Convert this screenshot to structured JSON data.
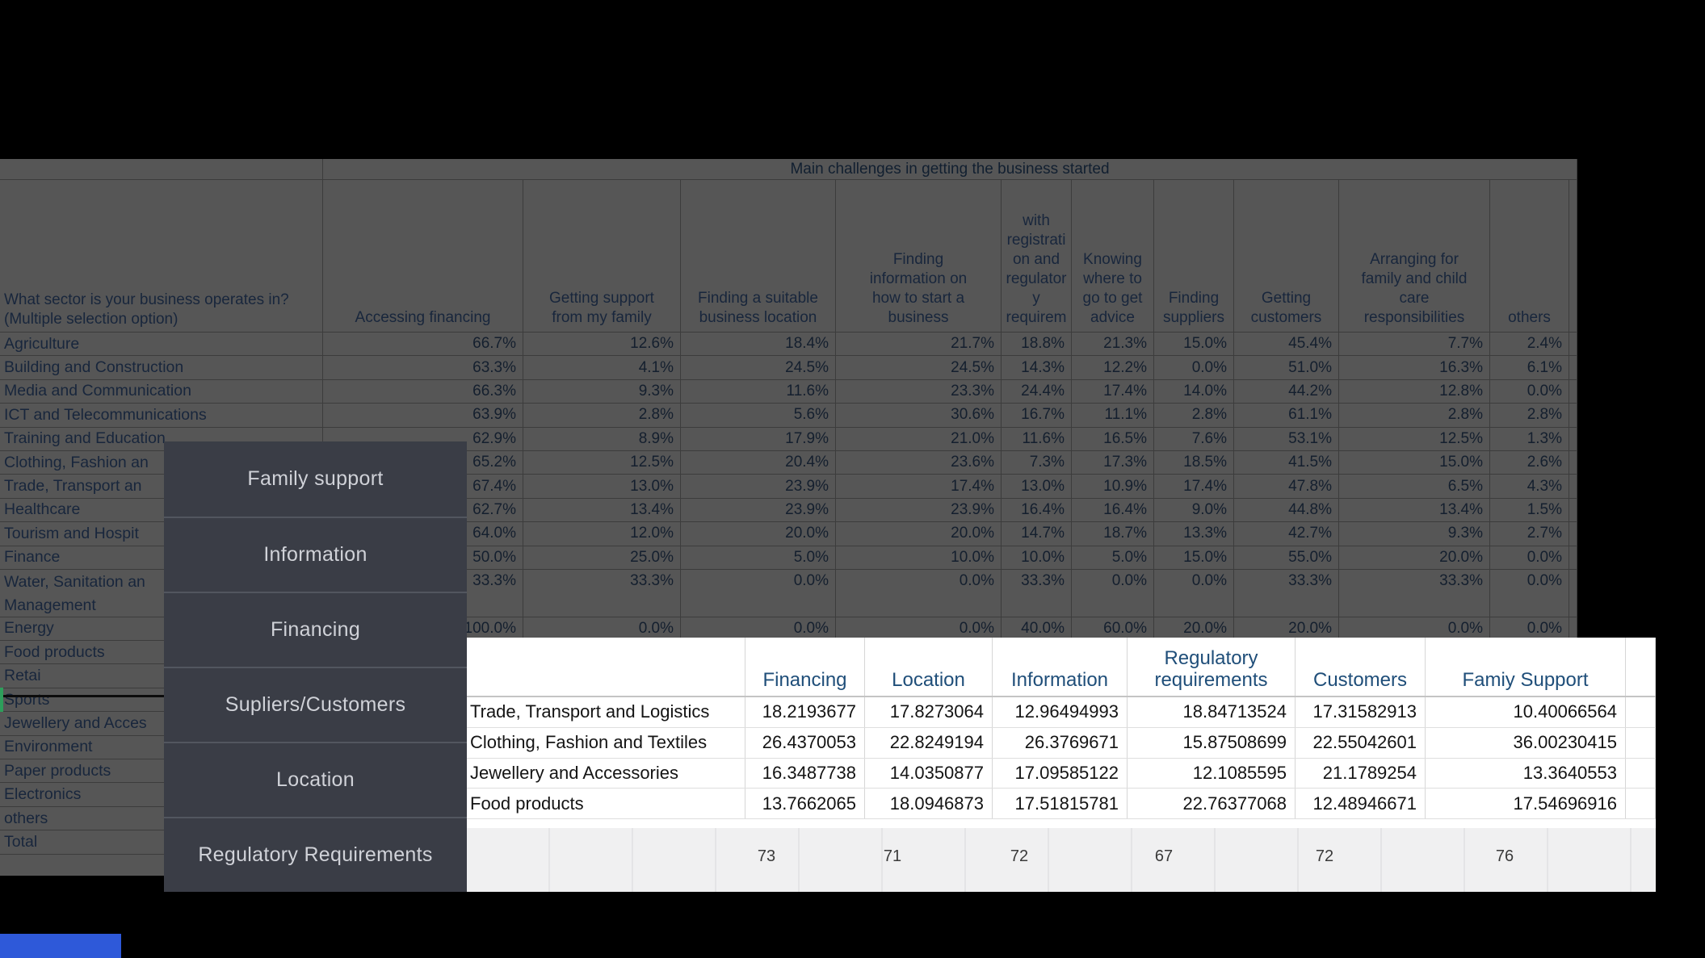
{
  "colors": {
    "page_background": "#000000",
    "dimmed_sheet_background": "#565656",
    "menu_background": "#3a3d46",
    "menu_text": "#d0d2d8",
    "white_table_header_text": "#1f4e79",
    "totals_strip_background": "#f0f0f1",
    "accent_blue_box": "#2e59d9",
    "active_cell_green": "#2e9e5b"
  },
  "spreadsheet": {
    "title": "Main challenges in getting the business started",
    "question_line1": "What sector is your business operates in?",
    "question_line2": "(Multiple selection option)",
    "columns": [
      {
        "lines": [
          "Accessing financing"
        ]
      },
      {
        "lines": [
          "Getting support",
          "from my family"
        ]
      },
      {
        "lines": [
          "Finding a suitable",
          "business location"
        ]
      },
      {
        "lines": [
          "Finding",
          "information on",
          "how to start a",
          "business"
        ]
      },
      {
        "lines": [
          "with",
          "registrati",
          "on and",
          "regulator",
          "y",
          "requirem"
        ]
      },
      {
        "lines": [
          "Knowing",
          "where to",
          "go to get",
          "advice"
        ]
      },
      {
        "lines": [
          "Finding",
          "suppliers"
        ]
      },
      {
        "lines": [
          "Getting",
          "customers"
        ]
      },
      {
        "lines": [
          "Arranging for",
          "family and child",
          "care",
          "responsibilities"
        ]
      },
      {
        "lines": [
          "others"
        ]
      }
    ],
    "rows": [
      {
        "label": "Agriculture",
        "values": [
          "66.7%",
          "12.6%",
          "18.4%",
          "21.7%",
          "18.8%",
          "21.3%",
          "15.0%",
          "45.4%",
          "7.7%",
          "2.4%"
        ]
      },
      {
        "label": "Building and Construction",
        "values": [
          "63.3%",
          "4.1%",
          "24.5%",
          "24.5%",
          "14.3%",
          "12.2%",
          "0.0%",
          "51.0%",
          "16.3%",
          "6.1%"
        ]
      },
      {
        "label": "Media and Communication",
        "values": [
          "66.3%",
          "9.3%",
          "11.6%",
          "23.3%",
          "24.4%",
          "17.4%",
          "14.0%",
          "44.2%",
          "12.8%",
          "0.0%"
        ]
      },
      {
        "label": "ICT and Telecommunications",
        "values": [
          "63.9%",
          "2.8%",
          "5.6%",
          "30.6%",
          "16.7%",
          "11.1%",
          "2.8%",
          "61.1%",
          "2.8%",
          "2.8%"
        ]
      },
      {
        "label": "Training and Education",
        "values": [
          "62.9%",
          "8.9%",
          "17.9%",
          "21.0%",
          "11.6%",
          "16.5%",
          "7.6%",
          "53.1%",
          "12.5%",
          "1.3%"
        ]
      },
      {
        "label": "Clothing, Fashion an",
        "values": [
          "65.2%",
          "12.5%",
          "20.4%",
          "23.6%",
          "7.3%",
          "17.3%",
          "18.5%",
          "41.5%",
          "15.0%",
          "2.6%"
        ]
      },
      {
        "label": "Trade, Transport an",
        "values": [
          "67.4%",
          "13.0%",
          "23.9%",
          "17.4%",
          "13.0%",
          "10.9%",
          "17.4%",
          "47.8%",
          "6.5%",
          "4.3%"
        ]
      },
      {
        "label": "Healthcare",
        "values": [
          "62.7%",
          "13.4%",
          "23.9%",
          "23.9%",
          "16.4%",
          "16.4%",
          "9.0%",
          "44.8%",
          "13.4%",
          "1.5%"
        ]
      },
      {
        "label": "Tourism and Hospit",
        "values": [
          "64.0%",
          "12.0%",
          "20.0%",
          "20.0%",
          "14.7%",
          "18.7%",
          "13.3%",
          "42.7%",
          "9.3%",
          "2.7%"
        ]
      },
      {
        "label": "Finance",
        "values": [
          "50.0%",
          "25.0%",
          "5.0%",
          "10.0%",
          "10.0%",
          "5.0%",
          "15.0%",
          "55.0%",
          "20.0%",
          "0.0%"
        ]
      },
      {
        "label": "Water, Sanitation an",
        "label2": "Management",
        "double": true,
        "values": [
          "33.3%",
          "33.3%",
          "0.0%",
          "0.0%",
          "33.3%",
          "0.0%",
          "0.0%",
          "33.3%",
          "33.3%",
          "0.0%"
        ]
      },
      {
        "label": "Energy",
        "values": [
          "100.0%",
          "0.0%",
          "0.0%",
          "0.0%",
          "40.0%",
          "60.0%",
          "20.0%",
          "20.0%",
          "0.0%",
          "0.0%"
        ]
      },
      {
        "label": "Food products",
        "values": [
          "",
          "",
          "",
          "",
          "",
          "",
          "",
          "",
          "",
          ""
        ]
      },
      {
        "label": "Retai",
        "values": [
          "",
          "",
          "",
          "",
          "",
          "",
          "",
          "",
          "",
          ""
        ]
      },
      {
        "label": "Sports",
        "values": [
          "",
          "",
          "",
          "",
          "",
          "",
          "",
          "",
          "",
          ""
        ]
      },
      {
        "label": "Jewellery and Acces",
        "values": [
          "",
          "",
          "",
          "",
          "",
          "",
          "",
          "",
          "",
          ""
        ]
      },
      {
        "label": "Environment",
        "values": [
          "",
          "",
          "",
          "",
          "",
          "",
          "",
          "",
          "",
          ""
        ]
      },
      {
        "label": "Paper products",
        "values": [
          "",
          "",
          "",
          "",
          "",
          "",
          "",
          "",
          "",
          ""
        ]
      },
      {
        "label": "Electronics",
        "values": [
          "",
          "",
          "",
          "",
          "",
          "",
          "",
          "",
          "",
          ""
        ]
      },
      {
        "label": "others",
        "values": [
          "",
          "",
          "",
          "",
          "",
          "",
          "",
          "",
          "",
          ""
        ]
      },
      {
        "label": "Total",
        "values": [
          "",
          "",
          "",
          "",
          "",
          "",
          "",
          "",
          "",
          ""
        ]
      }
    ]
  },
  "overlay_menu": {
    "items": [
      "Family support",
      "Information",
      "Financing",
      "Supliers/Customers",
      "Location",
      "Regulatory Requirements"
    ]
  },
  "results_table": {
    "headers": [
      "Financing",
      "Location",
      "Information",
      "Regulatory requirements",
      "Customers",
      "Famiy Support"
    ],
    "rows": [
      {
        "label": "Trade, Transport and Logistics",
        "values": [
          "18.2193677",
          "17.8273064",
          "12.96494993",
          "18.84713524",
          "17.31582913",
          "10.40066564"
        ]
      },
      {
        "label": "Clothing, Fashion and Textiles",
        "values": [
          "26.4370053",
          "22.8249194",
          "26.3769671",
          "15.87508699",
          "22.55042601",
          "36.00230415"
        ]
      },
      {
        "label": "Jewellery and Accessories",
        "values": [
          "16.3487738",
          "14.0350877",
          "17.09585122",
          "12.1085595",
          "21.1789254",
          "13.3640553"
        ]
      },
      {
        "label": "Food products",
        "values": [
          "13.7662065",
          "18.0946873",
          "17.51815781",
          "22.76377068",
          "12.48946671",
          "17.54696916"
        ]
      }
    ],
    "totals": [
      "73",
      "71",
      "72",
      "67",
      "72",
      "76"
    ]
  }
}
